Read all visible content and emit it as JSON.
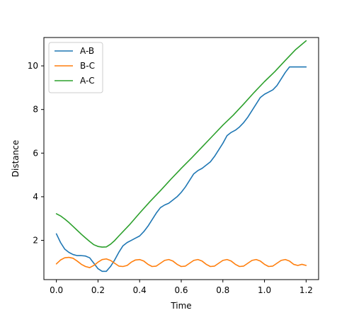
{
  "chart_data": {
    "type": "line",
    "title": "",
    "xlabel": "Time",
    "ylabel": "Distance",
    "xlim": [
      -0.06,
      1.26
    ],
    "ylim": [
      0.2,
      11.3
    ],
    "x_ticks": [
      0.0,
      0.2,
      0.4,
      0.6,
      0.8,
      1.0,
      1.2
    ],
    "x_tick_labels": [
      "0.0",
      "0.2",
      "0.4",
      "0.6",
      "0.8",
      "1.0",
      "1.2"
    ],
    "y_ticks": [
      2,
      4,
      6,
      8,
      10
    ],
    "y_tick_labels": [
      "2",
      "4",
      "6",
      "8",
      "10"
    ],
    "grid": false,
    "legend_position": "top-left",
    "series": [
      {
        "name": "A-B",
        "color": "#1f77b4",
        "x": [
          0.0,
          0.02,
          0.04,
          0.06,
          0.08,
          0.1,
          0.12,
          0.14,
          0.16,
          0.18,
          0.2,
          0.22,
          0.24,
          0.26,
          0.28,
          0.3,
          0.32,
          0.34,
          0.36,
          0.38,
          0.4,
          0.42,
          0.44,
          0.46,
          0.48,
          0.5,
          0.52,
          0.54,
          0.56,
          0.58,
          0.6,
          0.62,
          0.64,
          0.66,
          0.68,
          0.7,
          0.72,
          0.74,
          0.76,
          0.78,
          0.8,
          0.82,
          0.84,
          0.86,
          0.88,
          0.9,
          0.92,
          0.94,
          0.96,
          0.98,
          1.0,
          1.02,
          1.04,
          1.06,
          1.08,
          1.1,
          1.12,
          1.14,
          1.16,
          1.18,
          1.2
        ],
        "y": [
          2.3,
          1.9,
          1.6,
          1.45,
          1.35,
          1.3,
          1.3,
          1.28,
          1.2,
          0.95,
          0.7,
          0.58,
          0.58,
          0.8,
          1.1,
          1.45,
          1.75,
          1.9,
          2.0,
          2.1,
          2.2,
          2.4,
          2.65,
          2.95,
          3.25,
          3.5,
          3.62,
          3.7,
          3.85,
          4.0,
          4.2,
          4.45,
          4.75,
          5.05,
          5.2,
          5.3,
          5.45,
          5.6,
          5.85,
          6.15,
          6.45,
          6.8,
          6.95,
          7.05,
          7.2,
          7.4,
          7.65,
          7.95,
          8.25,
          8.55,
          8.7,
          8.8,
          8.9,
          9.1,
          9.4,
          9.7,
          9.95,
          9.95,
          9.95,
          9.95,
          9.95
        ]
      },
      {
        "name": "B-C",
        "color": "#ff7f0e",
        "x": [
          0.0,
          0.02,
          0.04,
          0.06,
          0.08,
          0.1,
          0.12,
          0.14,
          0.16,
          0.18,
          0.2,
          0.22,
          0.24,
          0.26,
          0.28,
          0.3,
          0.32,
          0.34,
          0.36,
          0.38,
          0.4,
          0.42,
          0.44,
          0.46,
          0.48,
          0.5,
          0.52,
          0.54,
          0.56,
          0.58,
          0.6,
          0.62,
          0.64,
          0.66,
          0.68,
          0.7,
          0.72,
          0.74,
          0.76,
          0.78,
          0.8,
          0.82,
          0.84,
          0.86,
          0.88,
          0.9,
          0.92,
          0.94,
          0.96,
          0.98,
          1.0,
          1.02,
          1.04,
          1.06,
          1.08,
          1.1,
          1.12,
          1.14,
          1.16,
          1.18,
          1.2
        ],
        "y": [
          0.92,
          1.1,
          1.2,
          1.22,
          1.18,
          1.05,
          0.9,
          0.8,
          0.75,
          0.85,
          1.0,
          1.12,
          1.15,
          1.08,
          0.95,
          0.82,
          0.8,
          0.85,
          1.0,
          1.1,
          1.12,
          1.05,
          0.9,
          0.8,
          0.82,
          0.95,
          1.08,
          1.12,
          1.05,
          0.9,
          0.8,
          0.82,
          0.95,
          1.08,
          1.12,
          1.05,
          0.9,
          0.8,
          0.82,
          0.95,
          1.08,
          1.12,
          1.05,
          0.9,
          0.8,
          0.82,
          0.95,
          1.08,
          1.12,
          1.05,
          0.9,
          0.8,
          0.82,
          0.95,
          1.08,
          1.12,
          1.05,
          0.9,
          0.85,
          0.9,
          0.85
        ]
      },
      {
        "name": "A-C",
        "color": "#2ca02c",
        "x": [
          0.0,
          0.02,
          0.04,
          0.06,
          0.08,
          0.1,
          0.12,
          0.14,
          0.16,
          0.18,
          0.2,
          0.22,
          0.24,
          0.26,
          0.28,
          0.3,
          0.35,
          0.4,
          0.45,
          0.5,
          0.55,
          0.6,
          0.65,
          0.7,
          0.75,
          0.8,
          0.85,
          0.9,
          0.95,
          1.0,
          1.05,
          1.1,
          1.15,
          1.2
        ],
        "y": [
          3.22,
          3.12,
          2.98,
          2.82,
          2.64,
          2.46,
          2.28,
          2.11,
          1.95,
          1.8,
          1.72,
          1.69,
          1.7,
          1.82,
          1.99,
          2.2,
          2.7,
          3.25,
          3.78,
          4.28,
          4.8,
          5.3,
          5.78,
          6.28,
          6.78,
          7.28,
          7.74,
          8.25,
          8.78,
          9.28,
          9.74,
          10.25,
          10.75,
          11.15
        ]
      }
    ]
  }
}
